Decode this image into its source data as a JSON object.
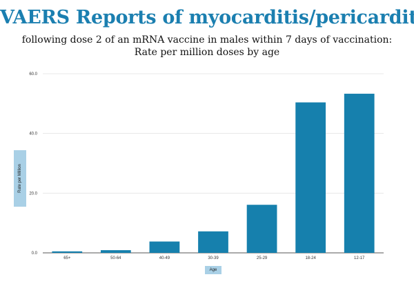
{
  "chart_data": {
    "type": "bar",
    "title": "VAERS Reports of myocarditis/pericarditis",
    "subtitle_lines": [
      "following dose 2 of an mRNA vaccine in males within 7 days of vaccination:",
      "Rate per million doses by age"
    ],
    "xlabel": "Age",
    "ylabel": "Rate per Million",
    "categories": [
      "65+",
      "50-64",
      "40-49",
      "30-39",
      "25-29",
      "18-24",
      "12-17"
    ],
    "values": [
      0.5,
      0.9,
      3.8,
      7.2,
      16.1,
      50.4,
      53.3
    ],
    "ylim": [
      0,
      60
    ],
    "yticks": [
      "0.0",
      "20.0",
      "40.0",
      "60.0"
    ],
    "grid": true,
    "colors": {
      "bar": "#1680ad",
      "title": "#1b7fb0",
      "axis_label_bg": "#a9d0e6"
    }
  }
}
